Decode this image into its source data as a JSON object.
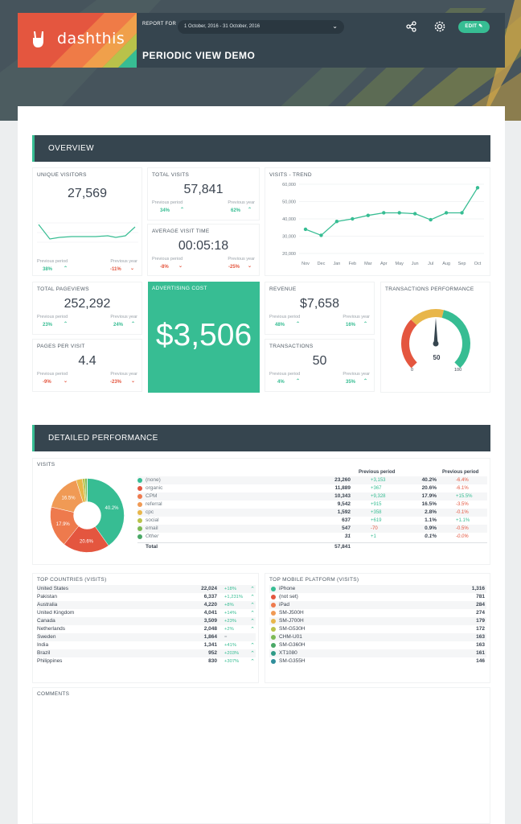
{
  "header": {
    "logo_text": "dashthis",
    "report_for_label": "REPORT FOR",
    "date_range": "1 October, 2016 - 31 October, 2016",
    "title": "PERIODIC VIEW DEMO",
    "edit_label": "EDIT"
  },
  "overview": {
    "section_title": "OVERVIEW",
    "unique_visitors": {
      "title": "UNIQUE VISITORS",
      "value": "27,569",
      "prev_period_label": "Previous period",
      "prev_year_label": "Previous year",
      "prev_period": "38%",
      "prev_year": "-11%"
    },
    "total_visits": {
      "title": "TOTAL VISITS",
      "value": "57,841",
      "prev_period_label": "Previous period",
      "prev_year_label": "Previous year",
      "prev_period": "34%",
      "prev_year": "62%"
    },
    "avg_visit_time": {
      "title": "AVERAGE VISIT TIME",
      "value": "00:05:18",
      "prev_period_label": "Previous period",
      "prev_year_label": "Previous year",
      "prev_period": "-8%",
      "prev_year": "-25%"
    },
    "total_pageviews": {
      "title": "TOTAL PAGEVIEWS",
      "value": "252,292",
      "prev_period_label": "Previous period",
      "prev_year_label": "Previous year",
      "prev_period": "23%",
      "prev_year": "24%"
    },
    "pages_per_visit": {
      "title": "PAGES PER VISIT",
      "value": "4.4",
      "prev_period_label": "Previous period",
      "prev_year_label": "Previous year",
      "prev_period": "-9%",
      "prev_year": "-23%"
    },
    "advertising_cost": {
      "title": "ADVERTISING COST",
      "value": "$3,506"
    },
    "revenue": {
      "title": "REVENUE",
      "value": "$7,658",
      "prev_period_label": "Previous period",
      "prev_year_label": "Previous year",
      "prev_period": "48%",
      "prev_year": "16%"
    },
    "transactions": {
      "title": "TRANSACTIONS",
      "value": "50",
      "prev_period_label": "Previous period",
      "prev_year_label": "Previous year",
      "prev_period": "4%",
      "prev_year": "35%"
    },
    "transactions_performance": {
      "title": "TRANSACTIONS PERFORMANCE",
      "value": "50",
      "min": "0",
      "max": "100",
      "level": 0.5
    },
    "visits_trend_title": "VISITS - TREND",
    "colors": {
      "accent": "#37bd93",
      "negative": "#e4563f",
      "dark": "#36454f",
      "yellow": "#e8b64a"
    }
  },
  "chart_data": [
    {
      "type": "line",
      "title": "VISITS - TREND",
      "categories": [
        "Nov",
        "Dec",
        "Jan",
        "Feb",
        "Mar",
        "Apr",
        "May",
        "Jun",
        "Jul",
        "Aug",
        "Sep",
        "Oct"
      ],
      "x_points": [
        0,
        1,
        2,
        3,
        4,
        5,
        6,
        7,
        8,
        9,
        10,
        11
      ],
      "values": [
        34000,
        30500,
        38500,
        40000,
        42000,
        43500,
        43500,
        43000,
        39500,
        43500,
        43500,
        58000
      ],
      "ylim": [
        20000,
        60000
      ],
      "yticks": [
        "60,000",
        "50,000",
        "40,000",
        "30,000",
        "20,000"
      ],
      "grid": true
    },
    {
      "type": "pie",
      "title": "VISITS",
      "labels": [
        "(none)",
        "organic",
        "CPM",
        "referral",
        "cpc",
        "social",
        "email",
        "Other"
      ],
      "values": [
        23260,
        11889,
        10343,
        9542,
        1592,
        637,
        547,
        31
      ],
      "slice_labels": [
        "40.2%",
        "20.6%",
        "17.9%",
        "16.5%",
        "",
        "",
        "",
        ""
      ],
      "colors": [
        "#37bd93",
        "#e4563f",
        "#ee7a4d",
        "#f09a55",
        "#e8b64a",
        "#b9c24a",
        "#7cb955",
        "#4aa867"
      ]
    }
  ],
  "detailed": {
    "section_title": "DETAILED PERFORMANCE",
    "visits_title": "VISITS",
    "prev_period_header": "Previous period",
    "prev_year_header": "Previous period",
    "rows": [
      {
        "name": "(none)",
        "value": "23,260",
        "change": "+3,153",
        "pct": "40.2%",
        "yoy": "-6.4%"
      },
      {
        "name": "organic",
        "value": "11,889",
        "change": "+367",
        "pct": "20.6%",
        "yoy": "-6.1%"
      },
      {
        "name": "CPM",
        "value": "10,343",
        "change": "+9,328",
        "pct": "17.9%",
        "yoy": "+15.5%"
      },
      {
        "name": "referral",
        "value": "9,542",
        "change": "+915",
        "pct": "16.5%",
        "yoy": "-3.5%"
      },
      {
        "name": "cpc",
        "value": "1,592",
        "change": "+358",
        "pct": "2.8%",
        "yoy": "-0.1%"
      },
      {
        "name": "social",
        "value": "637",
        "change": "+619",
        "pct": "1.1%",
        "yoy": "+1.1%"
      },
      {
        "name": "email",
        "value": "547",
        "change": "-70",
        "pct": "0.9%",
        "yoy": "-0.5%"
      },
      {
        "name": "Other",
        "value": "31",
        "change": "+1",
        "pct": "0.1%",
        "yoy": "-0.0%"
      }
    ],
    "total_label": "Total",
    "total_value": "57,841"
  },
  "top_countries": {
    "title": "TOP COUNTRIES (VISITS)",
    "rows": [
      {
        "name": "United States",
        "value": "22,024",
        "change": "+18%",
        "dir": "up"
      },
      {
        "name": "Pakistan",
        "value": "6,337",
        "change": "+1,231%",
        "dir": "up"
      },
      {
        "name": "Australia",
        "value": "4,220",
        "change": "+8%",
        "dir": "up"
      },
      {
        "name": "United Kingdom",
        "value": "4,041",
        "change": "+14%",
        "dir": "up"
      },
      {
        "name": "Canada",
        "value": "3,509",
        "change": "+23%",
        "dir": "up"
      },
      {
        "name": "Netherlands",
        "value": "2,048",
        "change": "+2%",
        "dir": "up"
      },
      {
        "name": "Sweden",
        "value": "1,864",
        "change": "=",
        "dir": "eq"
      },
      {
        "name": "India",
        "value": "1,341",
        "change": "+41%",
        "dir": "up"
      },
      {
        "name": "Brazil",
        "value": "952",
        "change": "+203%",
        "dir": "up"
      },
      {
        "name": "Philippines",
        "value": "830",
        "change": "+307%",
        "dir": "up"
      }
    ]
  },
  "top_mobile": {
    "title": "TOP MOBILE PLATFORM (VISITS)",
    "rows": [
      {
        "name": "iPhone",
        "value": "1,316",
        "color": "#37bd93"
      },
      {
        "name": "(not set)",
        "value": "781",
        "color": "#e4563f"
      },
      {
        "name": "iPad",
        "value": "284",
        "color": "#ee7a4d"
      },
      {
        "name": "SM-J500H",
        "value": "274",
        "color": "#f09a55"
      },
      {
        "name": "SM-J700H",
        "value": "179",
        "color": "#e8b64a"
      },
      {
        "name": "SM-G530H",
        "value": "172",
        "color": "#b9c24a"
      },
      {
        "name": "CHM-U01",
        "value": "163",
        "color": "#7cb955"
      },
      {
        "name": "SM-G360H",
        "value": "163",
        "color": "#4aa867"
      },
      {
        "name": "XT1080",
        "value": "161",
        "color": "#2f9b87"
      },
      {
        "name": "SM-G355H",
        "value": "146",
        "color": "#2f8e9b"
      }
    ]
  },
  "comments": {
    "title": "COMMENTS"
  }
}
